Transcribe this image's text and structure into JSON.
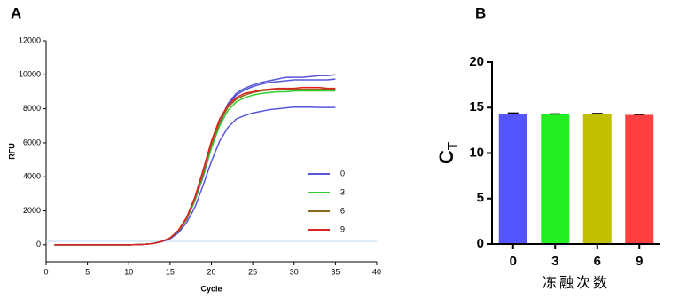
{
  "chart_data": [
    {
      "type": "line",
      "panel_label": "A",
      "x_label": "Cycle",
      "y_label": "RFU",
      "x": [
        1,
        2,
        3,
        4,
        5,
        6,
        7,
        8,
        9,
        10,
        11,
        12,
        13,
        14,
        15,
        16,
        17,
        18,
        19,
        20,
        21,
        22,
        23,
        24,
        25,
        26,
        27,
        28,
        29,
        30,
        31,
        32,
        33,
        34,
        35
      ],
      "series": [
        {
          "name": "0",
          "color": "#5555dd",
          "values": [
            0,
            0,
            0,
            0,
            0,
            0,
            0,
            0,
            0,
            0,
            10,
            30,
            80,
            200,
            400,
            800,
            1500,
            2600,
            4100,
            5800,
            7200,
            8300,
            8900,
            9200,
            9400,
            9550,
            9650,
            9750,
            9850,
            9850,
            9850,
            9900,
            9950,
            9950,
            10000
          ]
        },
        {
          "name": "0",
          "color": "#5555dd",
          "in_legend": false,
          "values": [
            0,
            0,
            0,
            0,
            0,
            0,
            0,
            0,
            0,
            0,
            10,
            30,
            80,
            200,
            400,
            800,
            1500,
            2600,
            4000,
            5700,
            7100,
            8200,
            8800,
            9100,
            9300,
            9450,
            9550,
            9600,
            9650,
            9700,
            9700,
            9700,
            9700,
            9700,
            9750
          ]
        },
        {
          "name": "0",
          "color": "#5555dd",
          "in_legend": false,
          "values": [
            0,
            0,
            0,
            0,
            0,
            0,
            0,
            0,
            0,
            0,
            10,
            30,
            80,
            180,
            350,
            700,
            1300,
            2200,
            3500,
            4900,
            6100,
            6900,
            7400,
            7600,
            7750,
            7850,
            7950,
            8000,
            8050,
            8100,
            8100,
            8100,
            8080,
            8080,
            8080
          ]
        },
        {
          "name": "3",
          "color": "#33cc33",
          "values": [
            0,
            0,
            0,
            0,
            0,
            0,
            0,
            0,
            0,
            0,
            10,
            30,
            80,
            200,
            400,
            800,
            1500,
            2600,
            4100,
            5700,
            7000,
            7900,
            8400,
            8650,
            8800,
            8900,
            8950,
            9000,
            9000,
            9050,
            9050,
            9050,
            9050,
            9050,
            9050
          ]
        },
        {
          "name": "6",
          "color": "#8b6a1a",
          "values": [
            0,
            0,
            0,
            0,
            0,
            0,
            0,
            0,
            0,
            0,
            10,
            30,
            80,
            200,
            400,
            800,
            1500,
            2700,
            4200,
            5900,
            7200,
            8100,
            8550,
            8800,
            8950,
            9050,
            9100,
            9150,
            9150,
            9150,
            9150,
            9150,
            9150,
            9150,
            9150
          ]
        },
        {
          "name": "9",
          "color": "#dd2222",
          "values": [
            0,
            0,
            0,
            0,
            0,
            0,
            0,
            0,
            0,
            0,
            10,
            30,
            80,
            200,
            400,
            850,
            1600,
            2800,
            4400,
            6100,
            7400,
            8200,
            8650,
            8900,
            9000,
            9100,
            9150,
            9200,
            9200,
            9200,
            9250,
            9250,
            9250,
            9200,
            9200
          ]
        }
      ],
      "threshold": 200,
      "threshold_color": "#b8d8f0",
      "xlim": [
        0,
        40
      ],
      "xticks": [
        0,
        5,
        10,
        15,
        20,
        25,
        30,
        35,
        40
      ],
      "ylim": [
        -1000,
        12000
      ],
      "yticks": [
        0,
        2000,
        4000,
        6000,
        8000,
        10000,
        12000
      ],
      "legend": "right"
    },
    {
      "type": "bar",
      "panel_label": "B",
      "x_label": "冻融次数",
      "y_label": "C",
      "y_label_sub": "T",
      "categories": [
        "0",
        "3",
        "6",
        "9"
      ],
      "values": [
        14.3,
        14.25,
        14.25,
        14.2
      ],
      "errors": [
        0.1,
        0.05,
        0.1,
        0.05
      ],
      "colors": [
        "#5555ff",
        "#22ee22",
        "#c0c000",
        "#ff4040"
      ],
      "ylim": [
        0,
        20
      ],
      "yticks": [
        0,
        5,
        10,
        15,
        20
      ]
    }
  ]
}
